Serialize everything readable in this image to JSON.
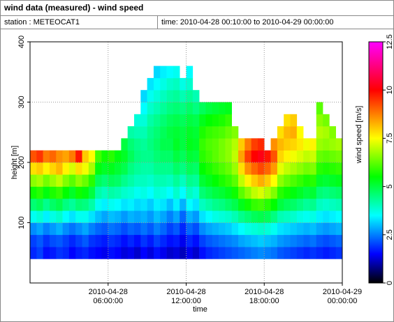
{
  "header": {
    "title": "wind data (measured) - wind speed",
    "station": "station : METEOCAT1",
    "time": "time: 2010-04-28 00:10:00 to 2010-04-29 00:00:00"
  },
  "chart_data": {
    "type": "heatmap",
    "xlabel": "time",
    "ylabel": "height [m]",
    "colorbar_label": "wind speed [m/s]",
    "xlim": [
      0,
      24
    ],
    "xticks": [
      {
        "value": 6,
        "label": "2010-04-28 06:00:00"
      },
      {
        "value": 12,
        "label": "2010-04-28 12:00:00"
      },
      {
        "value": 18,
        "label": "2010-04-28 18:00:00"
      },
      {
        "value": 24,
        "label": "2010-04-29 00:00:00"
      }
    ],
    "ylim": [
      0,
      400
    ],
    "yticks": [
      100,
      200,
      300,
      400
    ],
    "grid": true,
    "clim": [
      0,
      12.5
    ],
    "cticks": [
      0,
      2.5,
      5,
      7.5,
      10,
      12.5
    ],
    "colorscale": [
      [
        0,
        "#000000"
      ],
      [
        1.5,
        "#0000ff"
      ],
      [
        3.5,
        "#00ffff"
      ],
      [
        5.5,
        "#00ff00"
      ],
      [
        7.5,
        "#ffff00"
      ],
      [
        10,
        "#ff0000"
      ],
      [
        12.5,
        "#ff00ff"
      ]
    ],
    "x": [
      0.25,
      0.75,
      1.25,
      1.75,
      2.25,
      2.75,
      3.25,
      3.75,
      4.25,
      4.75,
      5.25,
      5.75,
      6.25,
      6.75,
      7.25,
      7.75,
      8.25,
      8.75,
      9.25,
      9.75,
      10.25,
      10.75,
      11.25,
      11.75,
      12.25,
      12.75,
      13.25,
      13.75,
      14.25,
      14.75,
      15.25,
      15.75,
      16.25,
      16.75,
      17.25,
      17.75,
      18.25,
      18.75,
      19.25,
      19.75,
      20.25,
      20.75,
      21.25,
      21.75,
      22.25,
      22.75,
      23.25,
      23.75
    ],
    "y": [
      50,
      70,
      90,
      110,
      130,
      150,
      170,
      190,
      210,
      230,
      250,
      270,
      290,
      310,
      330,
      350
    ],
    "values": [
      [
        1.8,
        2,
        2.6,
        3.6,
        4.6,
        5.6,
        6.6,
        7.8,
        9.2,
        null,
        null,
        null,
        null,
        null,
        null,
        null
      ],
      [
        2,
        2.2,
        2.8,
        3.8,
        4.8,
        5.8,
        6.8,
        8,
        9.5,
        null,
        null,
        null,
        null,
        null,
        null,
        null
      ],
      [
        1.6,
        1.9,
        2.5,
        3.4,
        4.4,
        5.4,
        6.4,
        7.6,
        8.8,
        null,
        null,
        null,
        null,
        null,
        null,
        null
      ],
      [
        1.7,
        2.1,
        2.7,
        3.7,
        4.7,
        5.7,
        6.7,
        7.9,
        9,
        null,
        null,
        null,
        null,
        null,
        null,
        null
      ],
      [
        1.9,
        2.2,
        2.9,
        3.9,
        4.9,
        5.9,
        7,
        8.2,
        8.6,
        null,
        null,
        null,
        null,
        null,
        null,
        null
      ],
      [
        1.8,
        2,
        2.6,
        3.5,
        4.5,
        5.5,
        6.5,
        7.6,
        8.4,
        null,
        null,
        null,
        null,
        null,
        null,
        null
      ],
      [
        1.5,
        1.8,
        2.4,
        3.3,
        4.3,
        5.2,
        6.2,
        7.2,
        8.8,
        null,
        null,
        null,
        null,
        null,
        null,
        null
      ],
      [
        1.7,
        2,
        2.6,
        3.6,
        4.6,
        5.6,
        6.6,
        7.8,
        9.8,
        null,
        null,
        null,
        null,
        null,
        null,
        null
      ],
      [
        1.8,
        2.2,
        2.8,
        3.6,
        4.5,
        5.4,
        6.3,
        7.4,
        8,
        null,
        null,
        null,
        null,
        null,
        null,
        null
      ],
      [
        1.6,
        1.9,
        2.5,
        3.3,
        4.2,
        5,
        5.8,
        6.8,
        7.5,
        null,
        null,
        null,
        null,
        null,
        null,
        null
      ],
      [
        1.5,
        1.8,
        2.3,
        3,
        3.6,
        4.2,
        4.8,
        5.4,
        6,
        null,
        null,
        null,
        null,
        null,
        null,
        null
      ],
      [
        1.4,
        1.7,
        2.2,
        2.8,
        3.4,
        4,
        4.6,
        5.2,
        5.6,
        null,
        null,
        null,
        null,
        null,
        null,
        null
      ],
      [
        1.6,
        1.9,
        2.4,
        3,
        3.6,
        4.2,
        4.8,
        5.3,
        5.8,
        null,
        null,
        null,
        null,
        null,
        null,
        null
      ],
      [
        1.5,
        1.8,
        2.3,
        2.9,
        3.5,
        4.1,
        4.7,
        5.1,
        5.4,
        null,
        null,
        null,
        null,
        null,
        null,
        null
      ],
      [
        1.3,
        1.6,
        2.1,
        2.7,
        3.3,
        3.9,
        4.4,
        4.9,
        5.2,
        5,
        null,
        null,
        null,
        null,
        null,
        null
      ],
      [
        1.4,
        1.8,
        2.3,
        2.9,
        3.4,
        3.8,
        4.2,
        4.5,
        4.8,
        4.6,
        4.2,
        null,
        null,
        null,
        null,
        null
      ],
      [
        1.2,
        1.6,
        2.2,
        2.8,
        3.2,
        3.6,
        4,
        4.3,
        4.5,
        4.4,
        4.1,
        3.8,
        null,
        null,
        null,
        null
      ],
      [
        1.5,
        1.9,
        2.4,
        2.9,
        3.3,
        3.7,
        4,
        4.2,
        4.4,
        4.3,
        4.1,
        3.8,
        3.5,
        3.2,
        null,
        null
      ],
      [
        1.3,
        1.7,
        2.2,
        2.7,
        3.1,
        3.5,
        3.9,
        4.2,
        4.4,
        4.5,
        4.4,
        4.2,
        3.9,
        3.6,
        3.3,
        null
      ],
      [
        1.6,
        2,
        2.5,
        3,
        3.4,
        3.8,
        4.1,
        4.4,
        4.6,
        4.7,
        4.6,
        4.4,
        4.1,
        3.8,
        3.5,
        3.2
      ],
      [
        1.4,
        1.8,
        2.3,
        2.8,
        3.3,
        3.7,
        4.1,
        4.4,
        4.7,
        4.9,
        4.8,
        4.6,
        4.3,
        4,
        3.7,
        3.4
      ],
      [
        1.2,
        1.6,
        2,
        2.5,
        3,
        3.5,
        4,
        4.4,
        4.7,
        4.9,
        5,
        4.8,
        4.5,
        4.2,
        3.9,
        3.5
      ],
      [
        1.3,
        1.7,
        2.2,
        2.8,
        3.4,
        3.9,
        4.3,
        4.7,
        5,
        5.2,
        5.1,
        4.9,
        4.6,
        4.3,
        4,
        3.6
      ],
      [
        1.1,
        1.4,
        1.8,
        2.3,
        2.9,
        3.5,
        4,
        4.5,
        4.8,
        5,
        5,
        4.8,
        4.5,
        4.1,
        3.7,
        null
      ],
      [
        1.4,
        1.8,
        2.3,
        2.9,
        3.5,
        4,
        4.4,
        4.8,
        5.1,
        5.3,
        5.2,
        5,
        4.7,
        4.3,
        3.9,
        3.5
      ],
      [
        1.2,
        1.6,
        2.1,
        2.7,
        3.3,
        3.8,
        4.3,
        4.7,
        5,
        5.2,
        5.1,
        4.9,
        4.5,
        4.1,
        null,
        null
      ],
      [
        1.6,
        2,
        2.6,
        3.3,
        4,
        4.6,
        5.1,
        5.5,
        5.8,
        5.9,
        5.7,
        5.3,
        4.8,
        null,
        null,
        null
      ],
      [
        1.8,
        2.2,
        2.8,
        3.5,
        4.2,
        4.8,
        5.3,
        5.7,
        6,
        6.1,
        5.9,
        5.5,
        5,
        null,
        null,
        null
      ],
      [
        1.9,
        2.3,
        2.9,
        3.7,
        4.4,
        5,
        5.5,
        5.9,
        6.2,
        6.2,
        6,
        5.6,
        5.1,
        null,
        null,
        null
      ],
      [
        2,
        2.4,
        3,
        3.8,
        4.5,
        5.1,
        5.7,
        6.1,
        6.4,
        6.4,
        6.1,
        5.7,
        5.2,
        null,
        null,
        null
      ],
      [
        2.1,
        2.5,
        3.1,
        3.9,
        4.7,
        5.3,
        5.9,
        6.3,
        6.6,
        6.6,
        6.3,
        5.9,
        5.3,
        null,
        null,
        null
      ],
      [
        2.2,
        2.6,
        3.3,
        4.1,
        4.9,
        5.6,
        6.2,
        6.7,
        7,
        6.9,
        6.5,
        null,
        null,
        null,
        null,
        null
      ],
      [
        2.3,
        2.8,
        3.5,
        4.4,
        5.3,
        6.2,
        7,
        7.8,
        8.4,
        8,
        null,
        null,
        null,
        null,
        null,
        null
      ],
      [
        2.4,
        2.9,
        3.7,
        4.6,
        5.6,
        6.6,
        7.6,
        8.6,
        9.4,
        8.8,
        null,
        null,
        null,
        null,
        null,
        null
      ],
      [
        2.5,
        3,
        3.8,
        4.8,
        5.9,
        7,
        8,
        9,
        10,
        9.4,
        null,
        null,
        null,
        null,
        null,
        null
      ],
      [
        2.6,
        3.1,
        3.9,
        4.9,
        6,
        7.2,
        8.3,
        9.3,
        10.2,
        9.6,
        null,
        null,
        null,
        null,
        null,
        null
      ],
      [
        2.5,
        3,
        3.8,
        4.8,
        5.8,
        6.9,
        8,
        9,
        9.8,
        null,
        null,
        null,
        null,
        null,
        null,
        null
      ],
      [
        2.4,
        2.9,
        3.6,
        4.5,
        5.5,
        6.5,
        7.5,
        8.5,
        9.2,
        8.6,
        null,
        null,
        null,
        null,
        null,
        null
      ],
      [
        2.2,
        2.7,
        3.3,
        4.1,
        5,
        5.8,
        6.6,
        7.3,
        7.9,
        8.2,
        7.8,
        null,
        null,
        null,
        null,
        null
      ],
      [
        2.1,
        2.6,
        3.2,
        4,
        4.8,
        5.6,
        6.3,
        7,
        7.6,
        8,
        8.2,
        7.8,
        null,
        null,
        null,
        null
      ],
      [
        2,
        2.5,
        3.1,
        3.9,
        4.7,
        5.4,
        6.1,
        6.8,
        7.4,
        7.9,
        8.3,
        8,
        null,
        null,
        null,
        null
      ],
      [
        1.9,
        2.4,
        3,
        3.7,
        4.5,
        5.2,
        5.9,
        6.6,
        7.2,
        7.7,
        7.5,
        null,
        null,
        null,
        null,
        null
      ],
      [
        1.8,
        2.3,
        2.9,
        3.6,
        4.3,
        5,
        5.7,
        6.4,
        7,
        7.4,
        null,
        null,
        null,
        null,
        null,
        null
      ],
      [
        1.9,
        2.4,
        3,
        3.7,
        4.4,
        5.1,
        5.8,
        6.5,
        7.1,
        7.6,
        null,
        null,
        null,
        null,
        null,
        null
      ],
      [
        1.8,
        2.2,
        2.8,
        3.4,
        4,
        4.6,
        5.2,
        5.8,
        6.3,
        6.7,
        6.9,
        6.6,
        6.2,
        null,
        null,
        null
      ],
      [
        1.7,
        2.1,
        2.7,
        3.3,
        3.9,
        4.5,
        5.1,
        5.7,
        6.2,
        6.6,
        6.8,
        6.4,
        null,
        null,
        null,
        null
      ],
      [
        1.8,
        2.2,
        2.8,
        3.4,
        4,
        4.6,
        5.2,
        5.8,
        6.3,
        6.7,
        6.5,
        null,
        null,
        null,
        null,
        null
      ],
      [
        1.9,
        2.3,
        2.9,
        3.5,
        4.1,
        4.7,
        5.3,
        5.9,
        6.4,
        6.8,
        null,
        null,
        null,
        null,
        null,
        null
      ]
    ]
  }
}
